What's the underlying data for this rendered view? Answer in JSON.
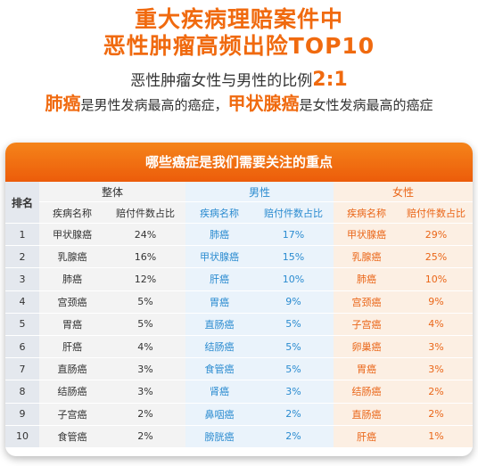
{
  "title_line1": "重大疾病理赔案件中",
  "title_line2": "恶性肿瘤高频出险TOP10",
  "ratio_text": "恶性肿瘤女性与男性的比例",
  "ratio_value": "2:1",
  "note": {
    "male_cancer": "肺癌",
    "male_text": "是男性发病最高的癌症，",
    "female_cancer": "甲状腺癌",
    "female_text": "是女性发病最高的癌症"
  },
  "table": {
    "banner": "哪些癌症是我们需要关注的重点",
    "rank_header": "排名",
    "groups": {
      "overall": "整体",
      "male": "男性",
      "female": "女性"
    },
    "col_name": "疾病名称",
    "col_pct": "赔付件数占比",
    "rows": [
      {
        "rank": "1",
        "o_name": "甲状腺癌",
        "o_pct": "24%",
        "m_name": "肺癌",
        "m_pct": "17%",
        "f_name": "甲状腺癌",
        "f_pct": "29%"
      },
      {
        "rank": "2",
        "o_name": "乳腺癌",
        "o_pct": "16%",
        "m_name": "甲状腺癌",
        "m_pct": "15%",
        "f_name": "乳腺癌",
        "f_pct": "25%"
      },
      {
        "rank": "3",
        "o_name": "肺癌",
        "o_pct": "12%",
        "m_name": "肝癌",
        "m_pct": "10%",
        "f_name": "肺癌",
        "f_pct": "10%"
      },
      {
        "rank": "4",
        "o_name": "宫颈癌",
        "o_pct": "5%",
        "m_name": "胃癌",
        "m_pct": "9%",
        "f_name": "宫颈癌",
        "f_pct": "9%"
      },
      {
        "rank": "5",
        "o_name": "胃癌",
        "o_pct": "5%",
        "m_name": "直肠癌",
        "m_pct": "5%",
        "f_name": "子宫癌",
        "f_pct": "4%"
      },
      {
        "rank": "6",
        "o_name": "肝癌",
        "o_pct": "4%",
        "m_name": "结肠癌",
        "m_pct": "5%",
        "f_name": "卵巢癌",
        "f_pct": "3%"
      },
      {
        "rank": "7",
        "o_name": "直肠癌",
        "o_pct": "3%",
        "m_name": "食管癌",
        "m_pct": "5%",
        "f_name": "胃癌",
        "f_pct": "3%"
      },
      {
        "rank": "8",
        "o_name": "结肠癌",
        "o_pct": "3%",
        "m_name": "肾癌",
        "m_pct": "3%",
        "f_name": "结肠癌",
        "f_pct": "2%"
      },
      {
        "rank": "9",
        "o_name": "子宫癌",
        "o_pct": "2%",
        "m_name": "鼻咽癌",
        "m_pct": "2%",
        "f_name": "直肠癌",
        "f_pct": "2%"
      },
      {
        "rank": "10",
        "o_name": "食管癌",
        "o_pct": "2%",
        "m_name": "膀胱癌",
        "m_pct": "2%",
        "f_name": "肝癌",
        "f_pct": "1%"
      }
    ]
  }
}
